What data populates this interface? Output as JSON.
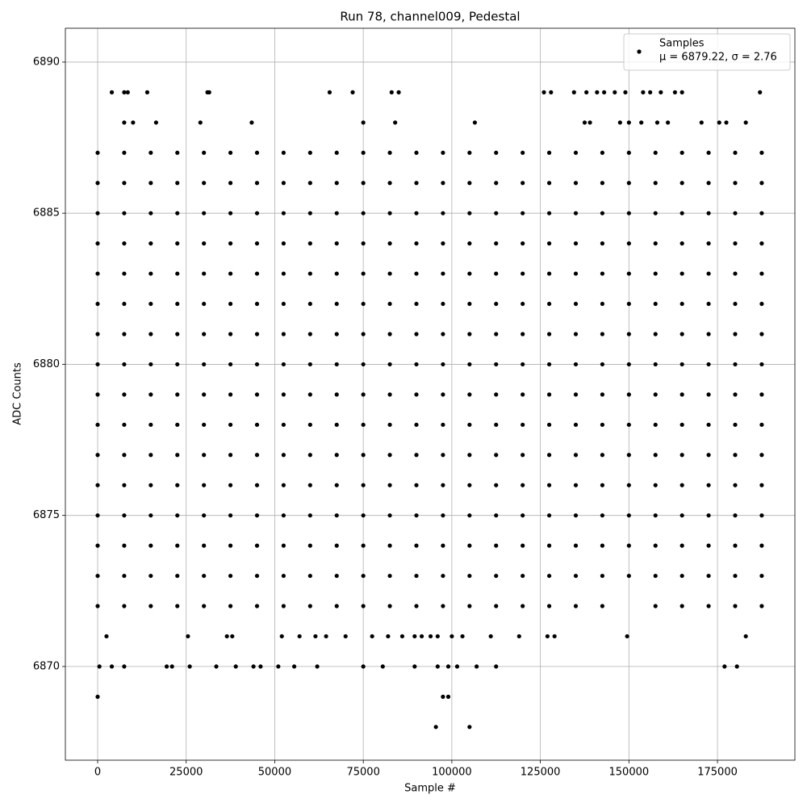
{
  "chart_data": {
    "type": "scatter",
    "title": "Run 78, channel009, Pedestal",
    "xlabel": "Sample #",
    "ylabel": "ADC Counts",
    "series_name": "Samples",
    "legend_note": "μ = 6879.22, σ = 2.76",
    "legend": "upper right",
    "color": "#000000",
    "grid": true,
    "xlim": [
      -9114,
      196860
    ],
    "ylim": [
      6866.9,
      6891.12
    ],
    "xticks": [
      0,
      25000,
      50000,
      75000,
      100000,
      125000,
      150000,
      175000
    ],
    "yticks": [
      6870,
      6875,
      6880,
      6885,
      6890
    ],
    "x": [
      0,
      7500,
      15000,
      22500,
      30000,
      37500,
      45000,
      52500,
      60000,
      67500,
      75000,
      82500,
      90000,
      97500,
      105000,
      112500,
      120000,
      127500,
      135000,
      142500,
      150000,
      157500,
      165000,
      172500,
      180000,
      187500,
      0,
      7500,
      15000,
      22500,
      30000,
      37500,
      45000,
      52500,
      60000,
      67500,
      75000,
      82500,
      90000,
      97500,
      105000,
      112500,
      120000,
      127500,
      135000,
      142500,
      150000,
      157500,
      165000,
      172500,
      180000,
      187500,
      0,
      7500,
      15000,
      22500,
      30000,
      37500,
      45000,
      52500,
      60000,
      67500,
      75000,
      82500,
      90000,
      97500,
      105000,
      112500,
      120000,
      127500,
      135000,
      142500,
      150000,
      157500,
      165000,
      172500,
      180000,
      187500,
      0,
      7500,
      15000,
      22500,
      30000,
      37500,
      45000,
      52500,
      60000,
      67500,
      75000,
      82500,
      90000,
      97500,
      105000,
      112500,
      120000,
      127500,
      135000,
      142500,
      150000,
      157500,
      165000,
      172500,
      180000,
      187500,
      0,
      7500,
      15000,
      22500,
      30000,
      37500,
      45000,
      52500,
      60000,
      67500,
      75000,
      82500,
      90000,
      97500,
      105000,
      112500,
      120000,
      127500,
      135000,
      142500,
      150000,
      157500,
      165000,
      172500,
      180000,
      187500,
      0,
      7500,
      15000,
      22500,
      30000,
      37500,
      45000,
      52500,
      60000,
      67500,
      75000,
      82500,
      90000,
      97500,
      105000,
      112500,
      120000,
      127500,
      135000,
      142500,
      150000,
      157500,
      165000,
      172500,
      180000,
      187500,
      0,
      7500,
      15000,
      22500,
      30000,
      37500,
      45000,
      52500,
      60000,
      67500,
      75000,
      82500,
      90000,
      97500,
      105000,
      112500,
      120000,
      127500,
      135000,
      142500,
      150000,
      157500,
      165000,
      172500,
      180000,
      187500,
      0,
      7500,
      15000,
      22500,
      30000,
      37500,
      45000,
      52500,
      60000,
      67500,
      75000,
      82500,
      90000,
      97500,
      105000,
      112500,
      120000,
      127500,
      135000,
      142500,
      150000,
      157500,
      165000,
      172500,
      180000,
      187500,
      0,
      7500,
      15000,
      22500,
      30000,
      37500,
      45000,
      52500,
      60000,
      67500,
      75000,
      82500,
      90000,
      97500,
      105000,
      112500,
      120000,
      127500,
      135000,
      142500,
      150000,
      157500,
      165000,
      172500,
      180000,
      187500,
      0,
      7500,
      15000,
      22500,
      30000,
      37500,
      45000,
      52500,
      60000,
      67500,
      75000,
      82500,
      90000,
      97500,
      105000,
      112500,
      120000,
      127500,
      135000,
      142500,
      150000,
      157500,
      165000,
      172500,
      180000,
      187500,
      0,
      7500,
      15000,
      22500,
      30000,
      37500,
      45000,
      52500,
      60000,
      67500,
      75000,
      82500,
      90000,
      97500,
      105000,
      112500,
      120000,
      127500,
      135000,
      142500,
      150000,
      157500,
      165000,
      172500,
      180000,
      187500,
      0,
      7500,
      15000,
      22500,
      30000,
      37500,
      45000,
      52500,
      60000,
      67500,
      75000,
      82500,
      90000,
      97500,
      105000,
      112500,
      120000,
      127500,
      135000,
      142500,
      150000,
      157500,
      165000,
      172500,
      180000,
      187500,
      0,
      7500,
      15000,
      22500,
      30000,
      37500,
      45000,
      52500,
      60000,
      67500,
      75000,
      82500,
      90000,
      97500,
      105000,
      112500,
      120000,
      127500,
      135000,
      142500,
      150000,
      157500,
      165000,
      172500,
      180000,
      187500,
      0,
      7500,
      15000,
      22500,
      30000,
      37500,
      45000,
      52500,
      60000,
      67500,
      75000,
      82500,
      90000,
      97500,
      105000,
      112500,
      120000,
      127500,
      135000,
      142500,
      150000,
      157500,
      165000,
      172500,
      180000,
      187500,
      0,
      7500,
      15000,
      22500,
      30000,
      37500,
      45000,
      52500,
      60000,
      67500,
      75000,
      82500,
      90000,
      97500,
      105000,
      112500,
      120000,
      127500,
      135000,
      142500,
      150000,
      157500,
      165000,
      172500,
      180000,
      187500,
      0,
      7500,
      15000,
      22500,
      30000,
      37500,
      45000,
      52500,
      60000,
      67500,
      75000,
      82500,
      90000,
      97500,
      105000,
      112500,
      120000,
      127500,
      135000,
      142500,
      157500,
      165000,
      172500,
      180000,
      187500,
      4000,
      7500,
      8500,
      14000,
      31000,
      31500,
      65500,
      72000,
      83000,
      85000,
      126000,
      128000,
      134500,
      138000,
      141000,
      143000,
      146000,
      149000,
      154000,
      156000,
      159000,
      163000,
      165000,
      187000,
      7500,
      10000,
      16500,
      29000,
      43500,
      75000,
      84000,
      106500,
      137500,
      139000,
      147500,
      150000,
      153500,
      158000,
      161000,
      170500,
      175500,
      177500,
      183000,
      2500,
      25500,
      36500,
      38000,
      52000,
      57000,
      61500,
      64500,
      70000,
      77500,
      82000,
      86000,
      89500,
      91500,
      94000,
      96000,
      100000,
      103000,
      111000,
      119000,
      127000,
      129000,
      149500,
      183000,
      500,
      4000,
      7500,
      19500,
      21000,
      26000,
      33500,
      39000,
      44000,
      46000,
      51000,
      55500,
      62000,
      75000,
      80500,
      89500,
      96000,
      99000,
      101500,
      107000,
      112500,
      177000,
      180500,
      0,
      97500,
      99000,
      95500,
      105000
    ],
    "y": [
      6873,
      6873,
      6873,
      6873,
      6873,
      6873,
      6873,
      6873,
      6873,
      6873,
      6873,
      6873,
      6873,
      6873,
      6873,
      6873,
      6873,
      6873,
      6873,
      6873,
      6873,
      6873,
      6873,
      6873,
      6873,
      6873,
      6874,
      6874,
      6874,
      6874,
      6874,
      6874,
      6874,
      6874,
      6874,
      6874,
      6874,
      6874,
      6874,
      6874,
      6874,
      6874,
      6874,
      6874,
      6874,
      6874,
      6874,
      6874,
      6874,
      6874,
      6874,
      6874,
      6875,
      6875,
      6875,
      6875,
      6875,
      6875,
      6875,
      6875,
      6875,
      6875,
      6875,
      6875,
      6875,
      6875,
      6875,
      6875,
      6875,
      6875,
      6875,
      6875,
      6875,
      6875,
      6875,
      6875,
      6875,
      6875,
      6876,
      6876,
      6876,
      6876,
      6876,
      6876,
      6876,
      6876,
      6876,
      6876,
      6876,
      6876,
      6876,
      6876,
      6876,
      6876,
      6876,
      6876,
      6876,
      6876,
      6876,
      6876,
      6876,
      6876,
      6876,
      6876,
      6877,
      6877,
      6877,
      6877,
      6877,
      6877,
      6877,
      6877,
      6877,
      6877,
      6877,
      6877,
      6877,
      6877,
      6877,
      6877,
      6877,
      6877,
      6877,
      6877,
      6877,
      6877,
      6877,
      6877,
      6877,
      6877,
      6878,
      6878,
      6878,
      6878,
      6878,
      6878,
      6878,
      6878,
      6878,
      6878,
      6878,
      6878,
      6878,
      6878,
      6878,
      6878,
      6878,
      6878,
      6878,
      6878,
      6878,
      6878,
      6878,
      6878,
      6878,
      6878,
      6879,
      6879,
      6879,
      6879,
      6879,
      6879,
      6879,
      6879,
      6879,
      6879,
      6879,
      6879,
      6879,
      6879,
      6879,
      6879,
      6879,
      6879,
      6879,
      6879,
      6879,
      6879,
      6879,
      6879,
      6879,
      6879,
      6880,
      6880,
      6880,
      6880,
      6880,
      6880,
      6880,
      6880,
      6880,
      6880,
      6880,
      6880,
      6880,
      6880,
      6880,
      6880,
      6880,
      6880,
      6880,
      6880,
      6880,
      6880,
      6880,
      6880,
      6880,
      6880,
      6881,
      6881,
      6881,
      6881,
      6881,
      6881,
      6881,
      6881,
      6881,
      6881,
      6881,
      6881,
      6881,
      6881,
      6881,
      6881,
      6881,
      6881,
      6881,
      6881,
      6881,
      6881,
      6881,
      6881,
      6881,
      6881,
      6882,
      6882,
      6882,
      6882,
      6882,
      6882,
      6882,
      6882,
      6882,
      6882,
      6882,
      6882,
      6882,
      6882,
      6882,
      6882,
      6882,
      6882,
      6882,
      6882,
      6882,
      6882,
      6882,
      6882,
      6882,
      6882,
      6883,
      6883,
      6883,
      6883,
      6883,
      6883,
      6883,
      6883,
      6883,
      6883,
      6883,
      6883,
      6883,
      6883,
      6883,
      6883,
      6883,
      6883,
      6883,
      6883,
      6883,
      6883,
      6883,
      6883,
      6883,
      6883,
      6884,
      6884,
      6884,
      6884,
      6884,
      6884,
      6884,
      6884,
      6884,
      6884,
      6884,
      6884,
      6884,
      6884,
      6884,
      6884,
      6884,
      6884,
      6884,
      6884,
      6884,
      6884,
      6884,
      6884,
      6884,
      6884,
      6885,
      6885,
      6885,
      6885,
      6885,
      6885,
      6885,
      6885,
      6885,
      6885,
      6885,
      6885,
      6885,
      6885,
      6885,
      6885,
      6885,
      6885,
      6885,
      6885,
      6885,
      6885,
      6885,
      6885,
      6885,
      6885,
      6886,
      6886,
      6886,
      6886,
      6886,
      6886,
      6886,
      6886,
      6886,
      6886,
      6886,
      6886,
      6886,
      6886,
      6886,
      6886,
      6886,
      6886,
      6886,
      6886,
      6886,
      6886,
      6886,
      6886,
      6886,
      6886,
      6887,
      6887,
      6887,
      6887,
      6887,
      6887,
      6887,
      6887,
      6887,
      6887,
      6887,
      6887,
      6887,
      6887,
      6887,
      6887,
      6887,
      6887,
      6887,
      6887,
      6887,
      6887,
      6887,
      6887,
      6887,
      6887,
      6872,
      6872,
      6872,
      6872,
      6872,
      6872,
      6872,
      6872,
      6872,
      6872,
      6872,
      6872,
      6872,
      6872,
      6872,
      6872,
      6872,
      6872,
      6872,
      6872,
      6872,
      6872,
      6872,
      6872,
      6872,
      6889,
      6889,
      6889,
      6889,
      6889,
      6889,
      6889,
      6889,
      6889,
      6889,
      6889,
      6889,
      6889,
      6889,
      6889,
      6889,
      6889,
      6889,
      6889,
      6889,
      6889,
      6889,
      6889,
      6889,
      6888,
      6888,
      6888,
      6888,
      6888,
      6888,
      6888,
      6888,
      6888,
      6888,
      6888,
      6888,
      6888,
      6888,
      6888,
      6888,
      6888,
      6888,
      6888,
      6871,
      6871,
      6871,
      6871,
      6871,
      6871,
      6871,
      6871,
      6871,
      6871,
      6871,
      6871,
      6871,
      6871,
      6871,
      6871,
      6871,
      6871,
      6871,
      6871,
      6871,
      6871,
      6871,
      6871,
      6870,
      6870,
      6870,
      6870,
      6870,
      6870,
      6870,
      6870,
      6870,
      6870,
      6870,
      6870,
      6870,
      6870,
      6870,
      6870,
      6870,
      6870,
      6870,
      6870,
      6870,
      6870,
      6870,
      6869,
      6869,
      6869,
      6868,
      6868
    ]
  }
}
